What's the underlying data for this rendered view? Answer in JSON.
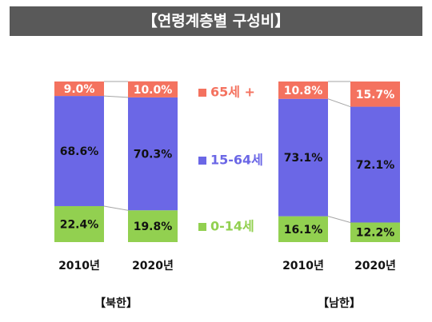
{
  "chart_data": {
    "type": "bar",
    "stacked": true,
    "title": "【연령계층별 구성비】",
    "groups": [
      "【북한】",
      "【남한】"
    ],
    "categories": [
      "2010년",
      "2020년",
      "2010년",
      "2020년"
    ],
    "ylim": [
      0,
      100
    ],
    "series": [
      {
        "name": "0-14세",
        "color": "#92d050",
        "values": [
          22.4,
          19.8,
          16.1,
          12.2
        ],
        "value_labels": [
          "22.4%",
          "19.8%",
          "16.1%",
          "12.2%"
        ]
      },
      {
        "name": "15-64세",
        "color": "#6b67e6",
        "values": [
          68.6,
          70.3,
          73.1,
          72.1
        ],
        "value_labels": [
          "68.6%",
          "70.3%",
          "73.1%",
          "72.1%"
        ]
      },
      {
        "name": "65세 +",
        "color": "#f4725f",
        "values": [
          9.0,
          10.0,
          10.8,
          15.7
        ],
        "value_labels": [
          "9.0%",
          "10.0%",
          "10.8%",
          "15.7%"
        ]
      }
    ]
  }
}
